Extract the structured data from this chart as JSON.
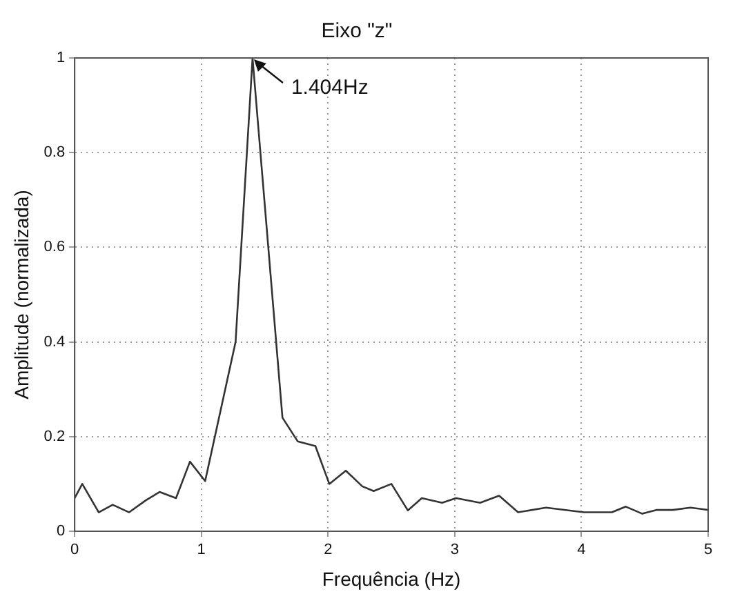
{
  "chart_data": {
    "type": "line",
    "title": "Eixo \"z\"",
    "xlabel": "Frequência (Hz)",
    "ylabel": "Amplitude (normalizada)",
    "xlim": [
      0,
      5
    ],
    "xticks": [
      0,
      1,
      2,
      3,
      4,
      5
    ],
    "ylim": [
      0,
      1
    ],
    "yticks": [
      0,
      0.2,
      0.4,
      0.6,
      0.8,
      1
    ],
    "grid": true,
    "legend": false,
    "marker": "none",
    "line_style": "solid",
    "series": [
      {
        "color": "#333333",
        "x": [
          0,
          0.06,
          0.19,
          0.3,
          0.43,
          0.56,
          0.67,
          0.8,
          0.91,
          1.03,
          1.27,
          1.404,
          1.64,
          1.76,
          1.9,
          2.01,
          2.14,
          2.27,
          2.36,
          2.5,
          2.63,
          2.74,
          2.9,
          3.01,
          3.2,
          3.35,
          3.5,
          3.72,
          4.02,
          4.24,
          4.35,
          4.48,
          4.59,
          4.72,
          4.86,
          5
        ],
        "values": [
          0.07,
          0.1,
          0.04,
          0.056,
          0.04,
          0.065,
          0.083,
          0.07,
          0.147,
          0.106,
          0.4,
          1,
          0.24,
          0.19,
          0.18,
          0.1,
          0.128,
          0.095,
          0.085,
          0.1,
          0.044,
          0.07,
          0.06,
          0.07,
          0.06,
          0.075,
          0.04,
          0.05,
          0.04,
          0.04,
          0.052,
          0.037,
          0.045,
          0.045,
          0.05,
          0.045
        ]
      }
    ],
    "annotations": [
      {
        "text": "1.404Hz",
        "x": 1.404,
        "y": 1
      }
    ]
  }
}
